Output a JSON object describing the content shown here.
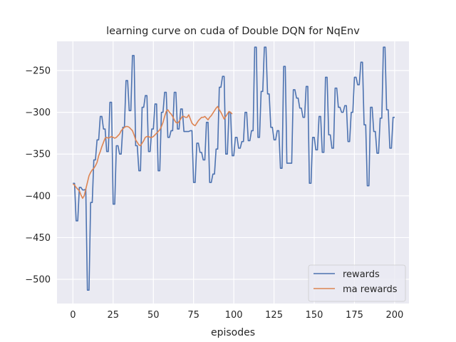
{
  "chart_data": {
    "type": "line",
    "title": "learning curve on cuda of Double DQN for NqEnv",
    "xlabel": "episodes",
    "ylabel": "",
    "xlim": [
      -9.9,
      208.9
    ],
    "ylim": [
      -529,
      -215
    ],
    "xticks": [
      0,
      25,
      50,
      75,
      100,
      125,
      150,
      175,
      200
    ],
    "yticks": [
      -500,
      -450,
      -400,
      -350,
      -300,
      -250
    ],
    "xtick_labels": [
      "0",
      "25",
      "50",
      "75",
      "100",
      "125",
      "150",
      "175",
      "200"
    ],
    "ytick_labels": [
      "−500",
      "−450",
      "−400",
      "−350",
      "−300",
      "−250"
    ],
    "grid": true,
    "background": "#eaeaf2",
    "legend_position": "lower right",
    "series": [
      {
        "name": "rewards",
        "color": "#4c72b0",
        "x_start": 0,
        "values": [
          -385,
          -385,
          -430,
          -430,
          -390,
          -390,
          -393,
          -393,
          -392,
          -513,
          -513,
          -408,
          -408,
          -357,
          -357,
          -333,
          -333,
          -305,
          -305,
          -320,
          -320,
          -347,
          -347,
          -288,
          -288,
          -410,
          -410,
          -340,
          -340,
          -350,
          -350,
          -318,
          -318,
          -262,
          -262,
          -298,
          -298,
          -232,
          -232,
          -340,
          -340,
          -370,
          -370,
          -294,
          -294,
          -280,
          -280,
          -347,
          -347,
          -320,
          -320,
          -290,
          -290,
          -370,
          -370,
          -300,
          -300,
          -276,
          -276,
          -330,
          -330,
          -322,
          -322,
          -276,
          -276,
          -320,
          -320,
          -296,
          -296,
          -323,
          -323,
          -323,
          -323,
          -322,
          -322,
          -384,
          -384,
          -337,
          -337,
          -348,
          -348,
          -357,
          -357,
          -312,
          -312,
          -384,
          -384,
          -374,
          -374,
          -344,
          -344,
          -270,
          -270,
          -257,
          -257,
          -350,
          -350,
          -300,
          -300,
          -352,
          -352,
          -330,
          -330,
          -343,
          -343,
          -335,
          -335,
          -300,
          -300,
          -334,
          -334,
          -322,
          -322,
          -222,
          -222,
          -330,
          -330,
          -275,
          -275,
          -222,
          -222,
          -278,
          -278,
          -318,
          -318,
          -333,
          -333,
          -322,
          -322,
          -367,
          -367,
          -245,
          -245,
          -361,
          -361,
          -361,
          -361,
          -273,
          -273,
          -283,
          -283,
          -295,
          -295,
          -306,
          -306,
          -269,
          -269,
          -385,
          -385,
          -330,
          -330,
          -345,
          -345,
          -305,
          -305,
          -348,
          -348,
          -258,
          -258,
          -327,
          -327,
          -343,
          -343,
          -271,
          -271,
          -294,
          -294,
          -300,
          -300,
          -292,
          -292,
          -335,
          -335,
          -300,
          -300,
          -258,
          -258,
          -267,
          -267,
          -240,
          -240,
          -315,
          -315,
          -388,
          -388,
          -294,
          -294,
          -323,
          -323,
          -349,
          -349,
          -307,
          -307,
          -222,
          -222,
          -297,
          -297,
          -343,
          -343,
          -306,
          -306
        ]
      },
      {
        "name": "ma rewards",
        "color": "#dd8452",
        "x_start": 0,
        "values": [
          -386,
          -387,
          -390,
          -392,
          -394,
          -399,
          -403,
          -400,
          -392,
          -384,
          -376,
          -372,
          -369,
          -367,
          -364,
          -360,
          -352,
          -347,
          -341,
          -336,
          -331,
          -330,
          -331,
          -330,
          -329,
          -330,
          -331,
          -330,
          -328,
          -326,
          -322,
          -320,
          -318,
          -317,
          -317,
          -318,
          -320,
          -322,
          -327,
          -333,
          -336,
          -339,
          -340,
          -337,
          -334,
          -330,
          -329,
          -329,
          -330,
          -330,
          -329,
          -327,
          -325,
          -323,
          -321,
          -317,
          -312,
          -305,
          -299,
          -297,
          -300,
          -302,
          -305,
          -309,
          -312,
          -313,
          -311,
          -308,
          -305,
          -305,
          -306,
          -306,
          -303,
          -308,
          -313,
          -315,
          -316,
          -313,
          -310,
          -308,
          -306,
          -306,
          -305,
          -307,
          -309,
          -306,
          -304,
          -301,
          -298,
          -295,
          -293,
          -297,
          -300,
          -304,
          -308,
          -305,
          -302,
          -299,
          -300,
          -302
        ]
      }
    ]
  }
}
